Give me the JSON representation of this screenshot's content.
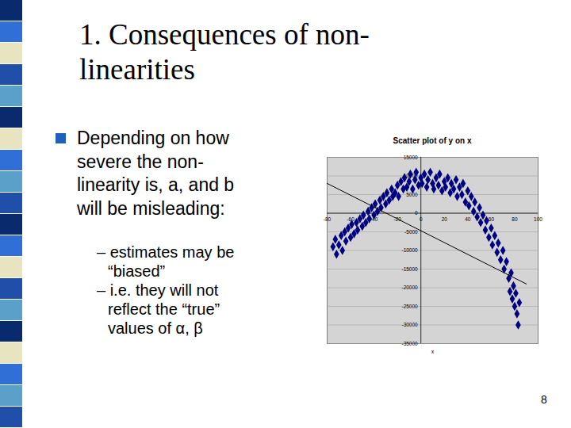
{
  "slide": {
    "title": [
      "1. Consequences of non-",
      "linearities"
    ],
    "bullet": [
      "Depending on how",
      "severe the non-",
      "linearity is, a, and b",
      "will be misleading:"
    ],
    "sub_bullets": [
      [
        "– estimates may be",
        "“biased”"
      ],
      [
        "– i.e. they will not",
        "reflect the “true”",
        "values of α, β"
      ]
    ],
    "page_number": "8"
  },
  "chart_data": {
    "type": "scatter",
    "title": "Scatter plot of y on x",
    "x_label": "x",
    "x": [
      -75,
      -73,
      -72,
      -70,
      -68,
      -67,
      -65,
      -64,
      -62,
      -60,
      -59,
      -57,
      -55,
      -54,
      -52,
      -50,
      -49,
      -47,
      -45,
      -44,
      -42,
      -40,
      -39,
      -37,
      -35,
      -34,
      -32,
      -30,
      -29,
      -27,
      -25,
      -24,
      -22,
      -20,
      -19,
      -17,
      -15,
      -14,
      -12,
      -10,
      -9,
      -7,
      -5,
      -4,
      -2,
      0,
      1,
      3,
      5,
      6,
      8,
      10,
      11,
      13,
      15,
      16,
      18,
      20,
      21,
      23,
      25,
      26,
      28,
      30,
      31,
      33,
      35,
      36,
      38,
      40,
      41,
      43,
      45,
      46,
      48,
      50,
      51,
      53,
      55,
      56,
      58,
      60,
      61,
      63,
      65,
      66,
      68,
      70,
      71,
      73,
      75,
      76,
      77,
      78,
      79,
      80,
      81,
      82,
      83,
      84
    ],
    "values": [
      -9000,
      -7000,
      -11000,
      -8500,
      -6000,
      -10000,
      -5000,
      -7500,
      -4000,
      -6500,
      -3000,
      -5500,
      -2500,
      -4500,
      -1500,
      -3500,
      -500,
      -2500,
      500,
      -1500,
      1500,
      -500,
      2500,
      500,
      3500,
      1500,
      4500,
      2500,
      5500,
      3500,
      6500,
      4500,
      5500,
      7500,
      4500,
      8500,
      6500,
      9500,
      7000,
      8500,
      10500,
      6500,
      9000,
      11000,
      7500,
      9500,
      8000,
      10500,
      7000,
      9000,
      11000,
      8000,
      6500,
      9500,
      7500,
      10500,
      6000,
      8500,
      7000,
      9500,
      5500,
      8000,
      6500,
      9000,
      4500,
      7000,
      5000,
      8000,
      3000,
      6000,
      2000,
      4500,
      500,
      3000,
      -1000,
      1500,
      -2500,
      -500,
      -4500,
      -2000,
      -6500,
      -4000,
      -8500,
      -6000,
      -10500,
      -8000,
      -12500,
      -10000,
      -15000,
      -13000,
      -17500,
      -21000,
      -16000,
      -23000,
      -19500,
      -25000,
      -21500,
      -27000,
      -30000,
      -24000
    ],
    "color": "#000080",
    "marker": "diamond",
    "trend_line": {
      "x": [
        -80,
        90
      ],
      "values": [
        8000,
        -19000
      ],
      "color": "#000000"
    },
    "xlim": [
      -80,
      100
    ],
    "xticks": [
      -80,
      -60,
      -40,
      -20,
      0,
      20,
      40,
      60,
      80,
      100
    ],
    "ylim": [
      -35000,
      15000
    ],
    "yticks": [
      -35000,
      -30000,
      -25000,
      -20000,
      -15000,
      -10000,
      -5000,
      0,
      5000,
      10000,
      15000
    ],
    "grid": true
  }
}
